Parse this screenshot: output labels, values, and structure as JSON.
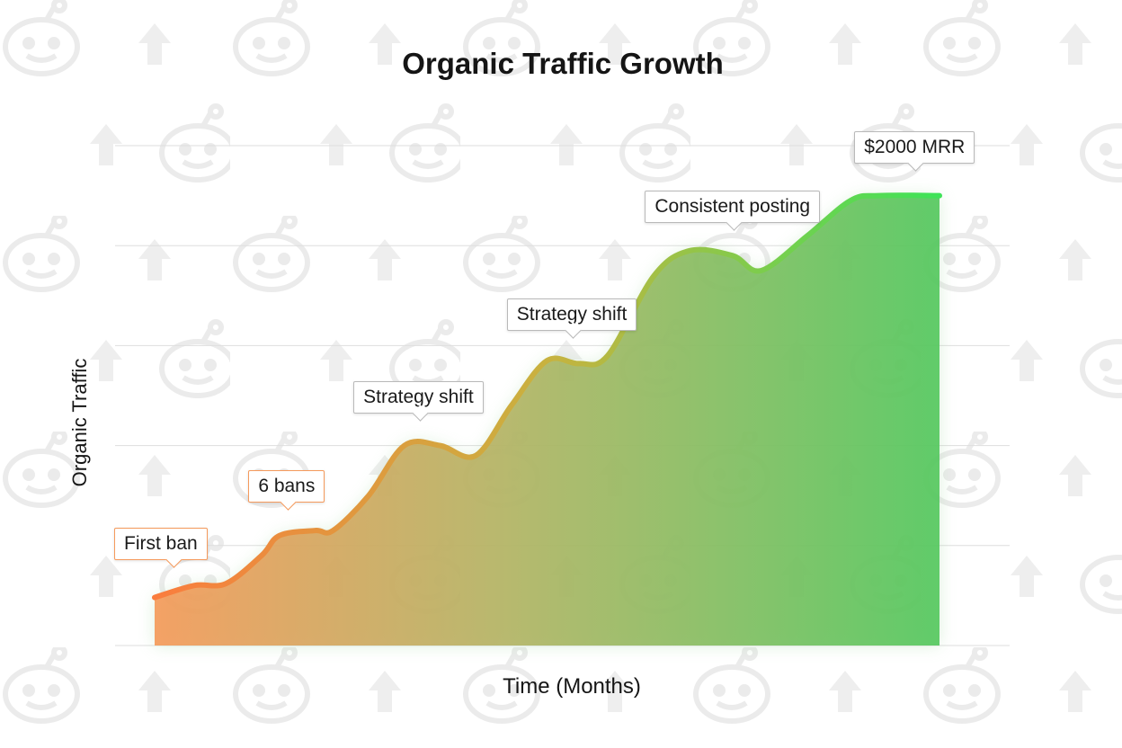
{
  "chart_data": {
    "type": "area",
    "title": "Organic Traffic Growth",
    "xlabel": "Time (Months)",
    "ylabel": "Organic Traffic",
    "xlim": [
      0,
      22
    ],
    "ylim": [
      0,
      5
    ],
    "grid": true,
    "x": [
      0,
      1.1,
      2,
      3,
      3.5,
      4.5,
      5,
      6,
      7,
      8,
      9,
      10,
      11,
      11.9,
      12.7,
      14,
      15,
      16.2,
      17,
      18.3,
      19.5,
      20.3,
      22
    ],
    "series": [
      {
        "values": [
          0.48,
          0.6,
          0.62,
          0.9,
          1.1,
          1.15,
          1.15,
          1.5,
          2.0,
          2.0,
          1.9,
          2.4,
          2.85,
          2.82,
          2.9,
          3.7,
          3.95,
          3.9,
          3.75,
          4.1,
          4.45,
          4.5,
          4.5
        ]
      }
    ],
    "annotations": [
      {
        "text": "First ban",
        "x": 0.5,
        "style": "orange"
      },
      {
        "text": "6 bans",
        "x": 3.7,
        "style": "orange"
      },
      {
        "text": "Strategy shift",
        "x": 7.4,
        "style": "gray"
      },
      {
        "text": "Strategy shift",
        "x": 11.7,
        "style": "gray"
      },
      {
        "text": "Consistent posting",
        "x": 16.2,
        "style": "gray"
      },
      {
        "text": "$2000 MRR",
        "x": 21.3,
        "style": "gray"
      }
    ],
    "colors": {
      "line_start": "#fa7d3e",
      "line_mid": "#c8b23f",
      "line_end": "#3ee358",
      "fill_start": "#f59a5a",
      "fill_mid": "#b4b465",
      "fill_end": "#55c85f"
    }
  },
  "background": {
    "pattern_icons": [
      "reddit-alien-icon",
      "upvote-arrow-icon"
    ],
    "pattern_color": "#ececec"
  }
}
